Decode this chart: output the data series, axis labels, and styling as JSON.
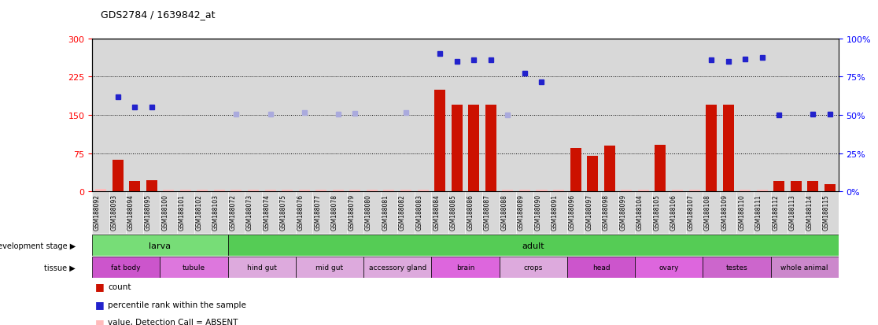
{
  "title": "GDS2784 / 1639842_at",
  "samples": [
    "GSM188092",
    "GSM188093",
    "GSM188094",
    "GSM188095",
    "GSM188100",
    "GSM188101",
    "GSM188102",
    "GSM188103",
    "GSM188072",
    "GSM188073",
    "GSM188074",
    "GSM188075",
    "GSM188076",
    "GSM188077",
    "GSM188078",
    "GSM188079",
    "GSM188080",
    "GSM188081",
    "GSM188082",
    "GSM188083",
    "GSM188084",
    "GSM188085",
    "GSM188086",
    "GSM188087",
    "GSM188088",
    "GSM188089",
    "GSM188090",
    "GSM188091",
    "GSM188096",
    "GSM188097",
    "GSM188098",
    "GSM188099",
    "GSM188104",
    "GSM188105",
    "GSM188106",
    "GSM188107",
    "GSM188108",
    "GSM188109",
    "GSM188110",
    "GSM188111",
    "GSM188112",
    "GSM188113",
    "GSM188114",
    "GSM188115"
  ],
  "count": [
    5,
    62,
    20,
    22,
    4,
    4,
    4,
    4,
    4,
    4,
    4,
    4,
    4,
    4,
    4,
    4,
    4,
    4,
    4,
    4,
    200,
    170,
    170,
    170,
    4,
    4,
    4,
    4,
    85,
    70,
    90,
    4,
    4,
    92,
    4,
    4,
    170,
    170,
    4,
    4,
    20,
    20,
    20,
    14
  ],
  "count_absent": [
    true,
    false,
    false,
    false,
    true,
    true,
    true,
    true,
    true,
    true,
    true,
    true,
    true,
    true,
    true,
    true,
    true,
    true,
    true,
    true,
    false,
    false,
    false,
    false,
    true,
    true,
    true,
    true,
    false,
    false,
    false,
    true,
    true,
    false,
    true,
    true,
    false,
    false,
    true,
    true,
    false,
    false,
    false,
    false
  ],
  "rank_vals": [
    null,
    185,
    165,
    165,
    null,
    null,
    null,
    null,
    null,
    null,
    null,
    null,
    null,
    null,
    null,
    null,
    null,
    null,
    null,
    null,
    null,
    null,
    null,
    null,
    null,
    null,
    null,
    null,
    null,
    null,
    null,
    null,
    null,
    null,
    null,
    null,
    null,
    null,
    null,
    null,
    150,
    null,
    152,
    152
  ],
  "rank_absent_vals": [
    null,
    null,
    null,
    null,
    null,
    null,
    null,
    null,
    152,
    null,
    152,
    null,
    155,
    null,
    152,
    153,
    null,
    null,
    155,
    null,
    null,
    null,
    null,
    null,
    null,
    null,
    null,
    null,
    null,
    null,
    null,
    null,
    null,
    null,
    null,
    null,
    null,
    null,
    null,
    null,
    null,
    null,
    null,
    null
  ],
  "perc_vals": [
    null,
    null,
    null,
    null,
    null,
    null,
    null,
    null,
    null,
    null,
    null,
    null,
    null,
    null,
    null,
    null,
    null,
    null,
    null,
    null,
    270,
    255,
    258,
    258,
    null,
    232,
    215,
    null,
    null,
    null,
    null,
    null,
    null,
    null,
    null,
    null,
    258,
    255,
    260,
    262,
    null,
    null,
    null,
    null
  ],
  "mid_rank_vals": [
    null,
    null,
    null,
    null,
    null,
    null,
    null,
    null,
    null,
    null,
    null,
    null,
    null,
    null,
    null,
    null,
    null,
    null,
    null,
    null,
    null,
    null,
    null,
    null,
    150,
    null,
    null,
    null,
    null,
    null,
    null,
    null,
    null,
    null,
    null,
    null,
    null,
    null,
    null,
    null,
    null,
    null,
    null,
    null
  ],
  "dev_stage_groups": [
    {
      "label": "larva",
      "start": 0,
      "end": 8
    },
    {
      "label": "adult",
      "start": 8,
      "end": 44
    }
  ],
  "dev_colors": [
    "#77dd77",
    "#55cc55"
  ],
  "tissue_groups": [
    {
      "label": "fat body",
      "start": 0,
      "end": 4
    },
    {
      "label": "tubule",
      "start": 4,
      "end": 8
    },
    {
      "label": "hind gut",
      "start": 8,
      "end": 12
    },
    {
      "label": "mid gut",
      "start": 12,
      "end": 16
    },
    {
      "label": "accessory gland",
      "start": 16,
      "end": 20
    },
    {
      "label": "brain",
      "start": 20,
      "end": 24
    },
    {
      "label": "crops",
      "start": 24,
      "end": 28
    },
    {
      "label": "head",
      "start": 28,
      "end": 32
    },
    {
      "label": "ovary",
      "start": 32,
      "end": 36
    },
    {
      "label": "testes",
      "start": 36,
      "end": 40
    },
    {
      "label": "whole animal",
      "start": 40,
      "end": 44
    }
  ],
  "tissue_colors": [
    "#cc55cc",
    "#dd77dd",
    "#ddaadd",
    "#ddaadd",
    "#ddaadd",
    "#dd66dd",
    "#ddaadd",
    "#cc55cc",
    "#dd66dd",
    "#cc66cc",
    "#cc88cc"
  ],
  "ylim_left": [
    0,
    300
  ],
  "ylim_right": [
    0,
    100
  ],
  "yticks_left": [
    0,
    75,
    150,
    225,
    300
  ],
  "yticks_right": [
    0,
    25,
    50,
    75,
    100
  ],
  "bar_color": "#cc1100",
  "bar_absent_color": "#ffbbbb",
  "rank_color": "#2222cc",
  "rank_absent_color": "#aaaadd",
  "bg_color": "#d8d8d8"
}
